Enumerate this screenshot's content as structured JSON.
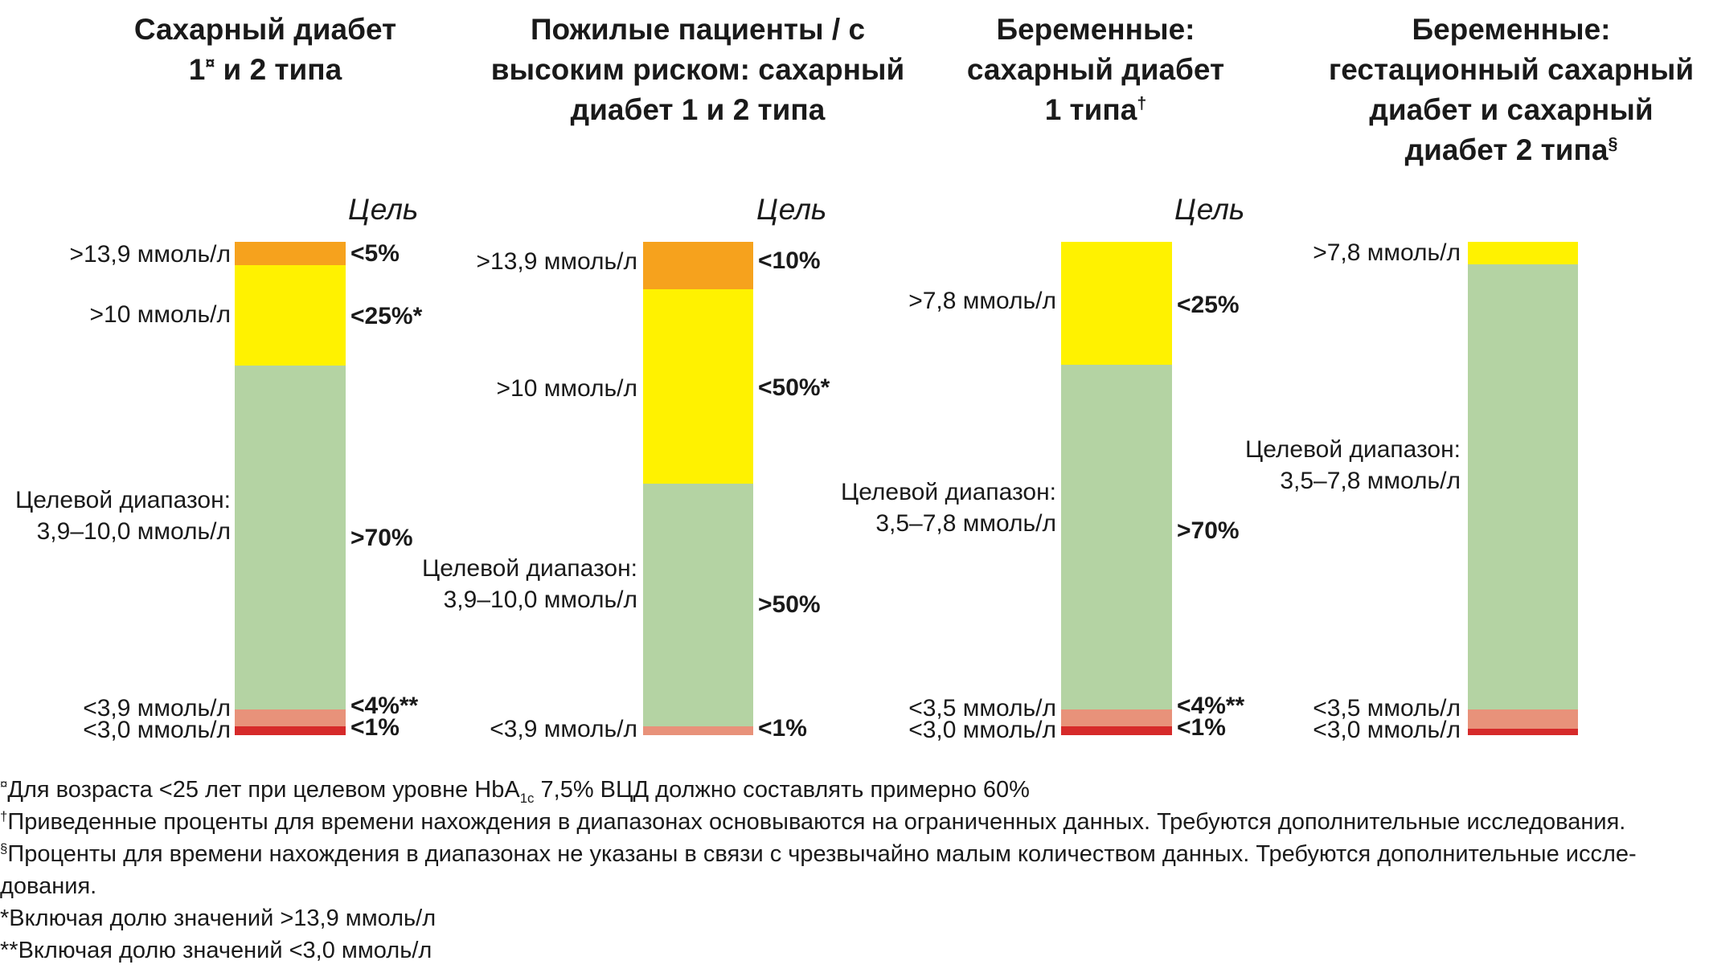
{
  "colors": {
    "very_high": "#f6a21d",
    "high": "#fff200",
    "target": "#b4d3a3",
    "low": "#e8927a",
    "very_low": "#d62a2a"
  },
  "goal_label": "Цель",
  "chart_data": [
    {
      "type": "stacked_bar",
      "title": "Сахарный диабет",
      "title_line2_pre": "1",
      "title_line2_mark": "¤",
      "title_line2_post": " и 2 типа",
      "segments": [
        {
          "name": ">13,9 ммоль/л",
          "value": 5,
          "goal": "<5%",
          "color": "very_high"
        },
        {
          "name": ">10 ммоль/л",
          "value": 25,
          "goal": "<25%*",
          "color": "high"
        },
        {
          "name": "Целевой диапазон: 3,9–10,0 ммоль/л",
          "value": 70,
          "goal": ">70%",
          "color": "target"
        },
        {
          "name": "<3,9 ммоль/л",
          "value": 4,
          "goal": "<4%**",
          "color": "low"
        },
        {
          "name": "<3,0 ммоль/л",
          "value": 1,
          "goal": "<1%",
          "color": "very_low"
        }
      ]
    },
    {
      "type": "stacked_bar",
      "title": "Пожилые пациенты / с высоким риском: сахарный диабет 1 и 2 типа",
      "segments": [
        {
          "name": ">13,9 ммоль/л",
          "value": 10,
          "goal": "<10%",
          "color": "very_high"
        },
        {
          "name": ">10 ммоль/л",
          "value": 50,
          "goal": "<50%*",
          "color": "high"
        },
        {
          "name": "Целевой диапазон: 3,9–10,0 ммоль/л",
          "value": 50,
          "goal": ">50%",
          "color": "target"
        },
        {
          "name": "<3,9 ммоль/л",
          "value": 1,
          "goal": "<1%",
          "color": "low"
        }
      ]
    },
    {
      "type": "stacked_bar",
      "title": "Беременные: сахарный диабет",
      "title_line3": "1 типа",
      "title_line3_mark": "†",
      "segments": [
        {
          "name": ">7,8 ммоль/л",
          "value": 25,
          "goal": "<25%",
          "color": "high"
        },
        {
          "name": "Целевой диапазон: 3,5–7,8 ммоль/л",
          "value": 70,
          "goal": ">70%",
          "color": "target"
        },
        {
          "name": "<3,5 ммоль/л",
          "value": 4,
          "goal": "<4%**",
          "color": "low"
        },
        {
          "name": "<3,0 ммоль/л",
          "value": 1,
          "goal": "<1%",
          "color": "very_low"
        }
      ]
    },
    {
      "type": "stacked_bar",
      "title": "Беременные: гестационный сахарный диабет и сахарный",
      "title_line3": "диабет 2 типа",
      "title_line3_mark": "§",
      "segments": [
        {
          "name": ">7,8 ммоль/л",
          "color": "high"
        },
        {
          "name": "Целевой диапазон: 3,5–7,8 ммоль/л",
          "color": "target"
        },
        {
          "name": "<3,5 ммоль/л",
          "color": "low"
        },
        {
          "name": "<3,0 ммоль/л",
          "color": "very_low"
        }
      ]
    }
  ],
  "footnotes": {
    "f1_mark": "¤",
    "f1_a": "Для возраста <25 лет при целевом уровне HbA",
    "f1_sub": "1c",
    "f1_b": " 7,5% ВЦД должно составлять примерно 60%",
    "f2_mark": "†",
    "f2": "Приведенные проценты для времени нахождения в диапазонах основываются на ограниченных данных. Требуются дополнительные исследования.",
    "f3_mark": "§",
    "f3_a": "Проценты для времени нахождения в диапазонах не указаны в связи с чрезвычайно малым количеством данных. Требуются дополнительные иссле-",
    "f3_b": "дования.",
    "f4": "*Включая долю значений >13,9 ммоль/л",
    "f5": "**Включая долю значений <3,0 ммоль/л"
  }
}
